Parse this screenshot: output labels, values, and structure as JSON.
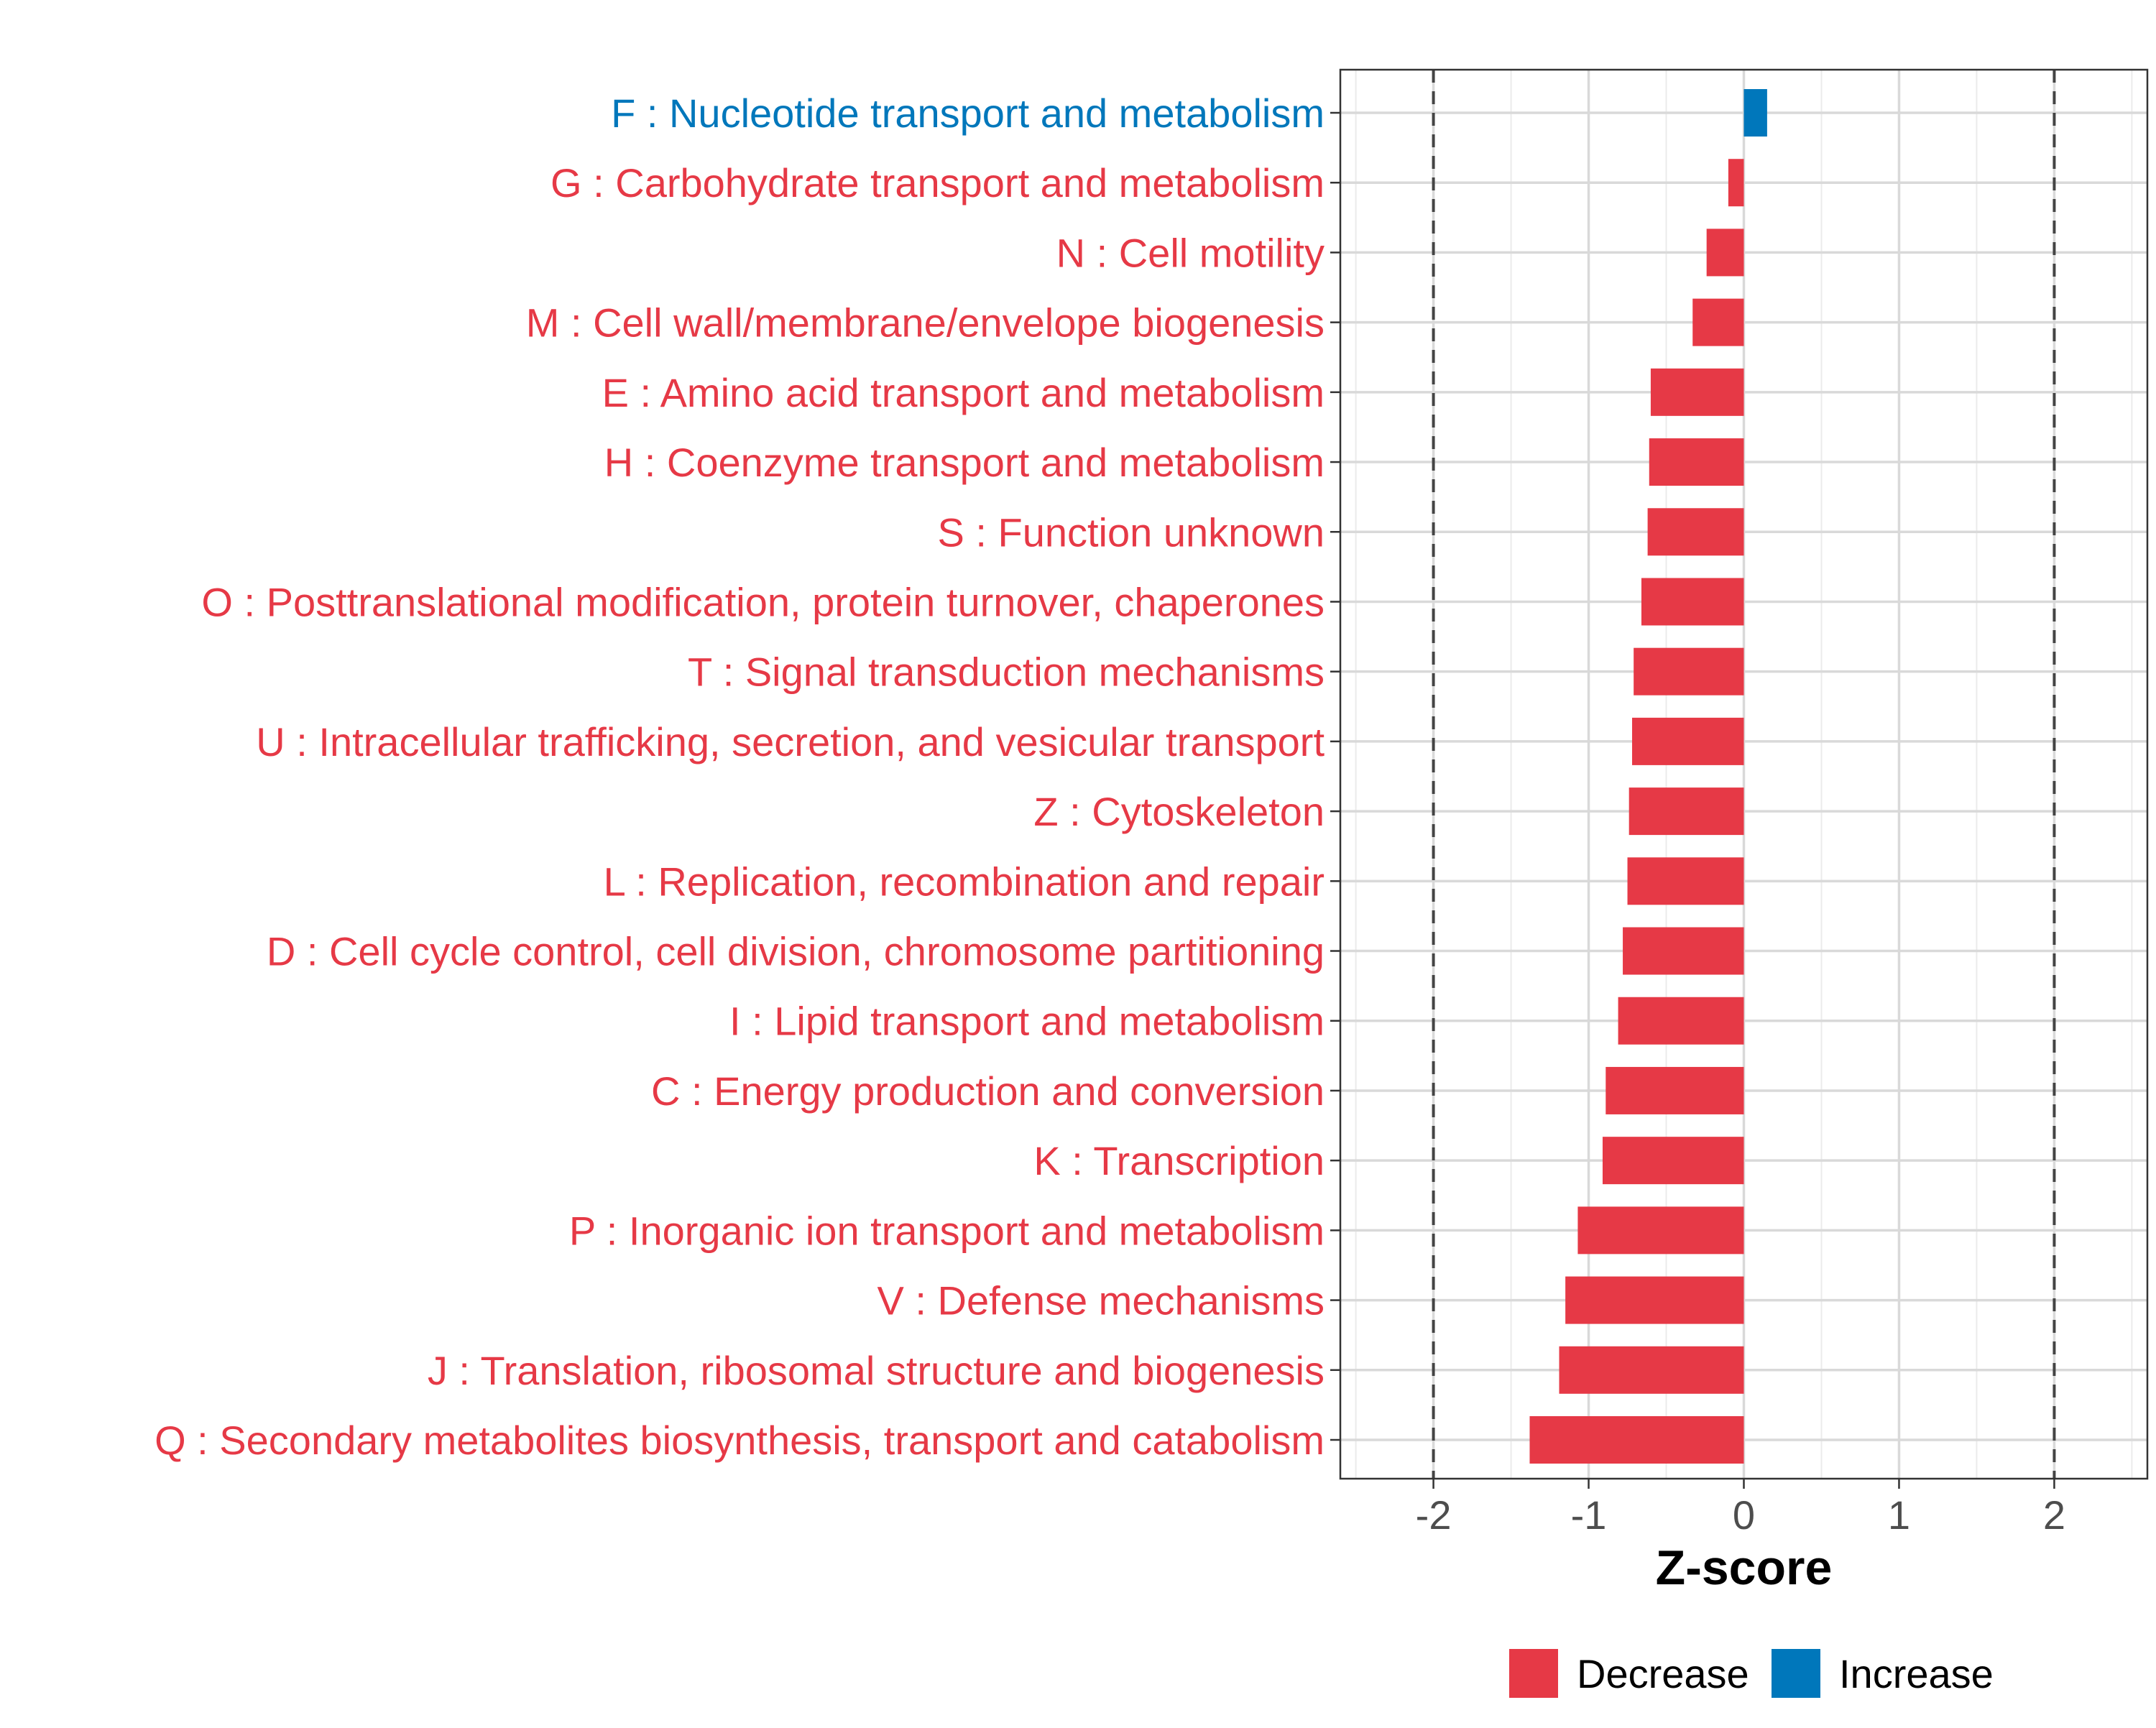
{
  "chart_data": {
    "type": "bar",
    "orientation": "horizontal",
    "title": "",
    "xlabel": "Z-score",
    "ylabel": "",
    "xlim": [
      -2.6,
      2.6
    ],
    "x_ticks": [
      -2,
      -1,
      0,
      1,
      2
    ],
    "x_tick_labels": [
      "-2",
      "-1",
      "0",
      "1",
      "2"
    ],
    "reference_lines": [
      -2,
      2
    ],
    "grid": true,
    "legend_position": "bottom",
    "colors": {
      "Decrease": "#e63946",
      "Increase": "#0077bb"
    },
    "legend": [
      {
        "label": "Decrease",
        "color": "#e63946"
      },
      {
        "label": "Increase",
        "color": "#0077bb"
      }
    ],
    "categories": [
      "F : Nucleotide transport and metabolism",
      "G : Carbohydrate transport and metabolism",
      "N : Cell motility",
      "M : Cell wall/membrane/envelope biogenesis",
      "E : Amino acid transport and metabolism",
      "H : Coenzyme transport and metabolism",
      "S : Function unknown",
      "O : Posttranslational modification, protein turnover, chaperones",
      "T : Signal transduction mechanisms",
      "U : Intracellular trafficking, secretion, and vesicular transport",
      "Z : Cytoskeleton",
      "L : Replication, recombination and repair",
      "D : Cell cycle control, cell division, chromosome partitioning",
      "I : Lipid transport and metabolism",
      "C : Energy production and conversion",
      "K : Transcription",
      "P : Inorganic ion transport and metabolism",
      "V : Defense mechanisms",
      "J : Translation, ribosomal structure and biogenesis",
      "Q : Secondary metabolites biosynthesis, transport and catabolism"
    ],
    "values": [
      0.15,
      -0.1,
      -0.24,
      -0.33,
      -0.6,
      -0.61,
      -0.62,
      -0.66,
      -0.71,
      -0.72,
      -0.74,
      -0.75,
      -0.78,
      -0.81,
      -0.89,
      -0.91,
      -1.07,
      -1.15,
      -1.19,
      -1.38
    ],
    "groups": [
      "Increase",
      "Decrease",
      "Decrease",
      "Decrease",
      "Decrease",
      "Decrease",
      "Decrease",
      "Decrease",
      "Decrease",
      "Decrease",
      "Decrease",
      "Decrease",
      "Decrease",
      "Decrease",
      "Decrease",
      "Decrease",
      "Decrease",
      "Decrease",
      "Decrease",
      "Decrease"
    ]
  }
}
